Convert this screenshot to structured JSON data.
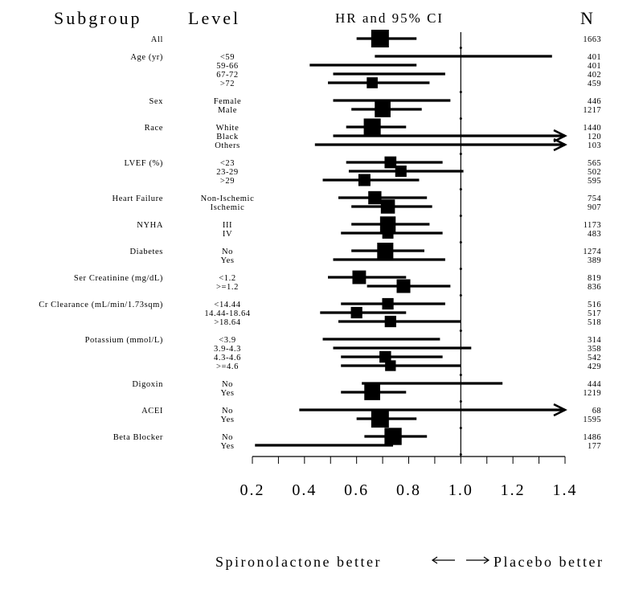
{
  "chart_data": {
    "type": "forest",
    "headers": {
      "subgroup": "Subgroup",
      "level": "Level",
      "estimate": "HR and 95% CI",
      "n": "N"
    },
    "xlim": [
      0.2,
      1.4
    ],
    "xticks": [
      "0.2",
      "0.4",
      "0.6",
      "0.8",
      "1.0",
      "1.2",
      "1.4"
    ],
    "reference_line": 1.0,
    "xlabel_left": "Spironolactone better",
    "xlabel_right": "Placebo better",
    "groups": [
      {
        "subgroup": "All",
        "rows": [
          {
            "level": "",
            "hr": 0.69,
            "lo": 0.6,
            "hi": 0.83,
            "n": "1663"
          }
        ]
      },
      {
        "subgroup": "Age (yr)",
        "rows": [
          {
            "level": "<59",
            "hr": null,
            "lo": 0.67,
            "hi": 1.35,
            "n": "401"
          },
          {
            "level": "59-66",
            "hr": null,
            "lo": 0.42,
            "hi": 0.83,
            "n": "401"
          },
          {
            "level": "67-72",
            "hr": null,
            "lo": 0.51,
            "hi": 0.94,
            "n": "402"
          },
          {
            "level": ">72",
            "hr": 0.66,
            "lo": 0.49,
            "hi": 0.88,
            "n": "459"
          }
        ]
      },
      {
        "subgroup": "Sex",
        "rows": [
          {
            "level": "Female",
            "hr": null,
            "lo": 0.51,
            "hi": 0.96,
            "n": "446"
          },
          {
            "level": "Male",
            "hr": 0.7,
            "lo": 0.58,
            "hi": 0.85,
            "n": "1217"
          }
        ]
      },
      {
        "subgroup": "Race",
        "rows": [
          {
            "level": "White",
            "hr": 0.66,
            "lo": 0.56,
            "hi": 0.79,
            "n": "1440"
          },
          {
            "level": "Black",
            "hr": null,
            "lo": 0.51,
            "hi": 1.4,
            "n": "120",
            "arrow": true
          },
          {
            "level": "Others",
            "hr": null,
            "lo": 0.44,
            "hi": 1.4,
            "n": "103",
            "arrow": true
          }
        ]
      },
      {
        "subgroup": "LVEF (%)",
        "rows": [
          {
            "level": "<23",
            "hr": 0.73,
            "lo": 0.56,
            "hi": 0.93,
            "n": "565"
          },
          {
            "level": "23-29",
            "hr": 0.77,
            "lo": 0.57,
            "hi": 1.01,
            "n": "502"
          },
          {
            "level": ">29",
            "hr": 0.63,
            "lo": 0.47,
            "hi": 0.84,
            "n": "595"
          }
        ]
      },
      {
        "subgroup": "Heart Failure",
        "rows": [
          {
            "level": "Non-Ischemic",
            "hr": 0.67,
            "lo": 0.53,
            "hi": 0.87,
            "n": "754"
          },
          {
            "level": "Ischemic",
            "hr": 0.72,
            "lo": 0.58,
            "hi": 0.89,
            "n": "907"
          }
        ]
      },
      {
        "subgroup": "NYHA",
        "rows": [
          {
            "level": "III",
            "hr": 0.72,
            "lo": 0.58,
            "hi": 0.88,
            "n": "1173"
          },
          {
            "level": "IV",
            "hr": 0.72,
            "lo": 0.54,
            "hi": 0.93,
            "n": "483"
          }
        ]
      },
      {
        "subgroup": "Diabetes",
        "rows": [
          {
            "level": "No",
            "hr": 0.71,
            "lo": 0.58,
            "hi": 0.86,
            "n": "1274"
          },
          {
            "level": "Yes",
            "hr": null,
            "lo": 0.51,
            "hi": 0.94,
            "n": "389"
          }
        ]
      },
      {
        "subgroup": "Ser Creatinine (mg/dL)",
        "rows": [
          {
            "level": "<1.2",
            "hr": 0.61,
            "lo": 0.49,
            "hi": 0.79,
            "n": "819"
          },
          {
            "level": ">=1.2",
            "hr": 0.78,
            "lo": 0.64,
            "hi": 0.96,
            "n": "836"
          }
        ]
      },
      {
        "subgroup": "Cr Clearance (mL/min/1.73sqm)",
        "rows": [
          {
            "level": "<14.44",
            "hr": 0.72,
            "lo": 0.54,
            "hi": 0.94,
            "n": "516"
          },
          {
            "level": "14.44-18.64",
            "hr": 0.6,
            "lo": 0.46,
            "hi": 0.79,
            "n": "517"
          },
          {
            "level": ">18.64",
            "hr": 0.73,
            "lo": 0.53,
            "hi": 1.0,
            "n": "518"
          }
        ]
      },
      {
        "subgroup": "Potassium (mmol/L)",
        "rows": [
          {
            "level": "<3.9",
            "hr": null,
            "lo": 0.47,
            "hi": 0.92,
            "n": "314"
          },
          {
            "level": "3.9-4.3",
            "hr": null,
            "lo": 0.51,
            "hi": 1.04,
            "n": "358"
          },
          {
            "level": "4.3-4.6",
            "hr": 0.71,
            "lo": 0.54,
            "hi": 0.93,
            "n": "542"
          },
          {
            "level": ">=4.6",
            "hr": 0.73,
            "lo": 0.54,
            "hi": 1.0,
            "n": "429"
          }
        ]
      },
      {
        "subgroup": "Digoxin",
        "rows": [
          {
            "level": "No",
            "hr": null,
            "lo": 0.62,
            "hi": 1.16,
            "n": "444"
          },
          {
            "level": "Yes",
            "hr": 0.66,
            "lo": 0.54,
            "hi": 0.79,
            "n": "1219"
          }
        ]
      },
      {
        "subgroup": "ACEI",
        "rows": [
          {
            "level": "No",
            "hr": null,
            "lo": 0.38,
            "hi": 1.4,
            "n": "68",
            "arrow": true
          },
          {
            "level": "Yes",
            "hr": 0.69,
            "lo": 0.6,
            "hi": 0.83,
            "n": "1595"
          }
        ]
      },
      {
        "subgroup": "Beta Blocker",
        "rows": [
          {
            "level": "No",
            "hr": 0.74,
            "lo": 0.63,
            "hi": 0.87,
            "n": "1486"
          },
          {
            "level": "Yes",
            "hr": null,
            "lo": 0.21,
            "hi": 0.74,
            "n": "177"
          }
        ]
      }
    ]
  }
}
